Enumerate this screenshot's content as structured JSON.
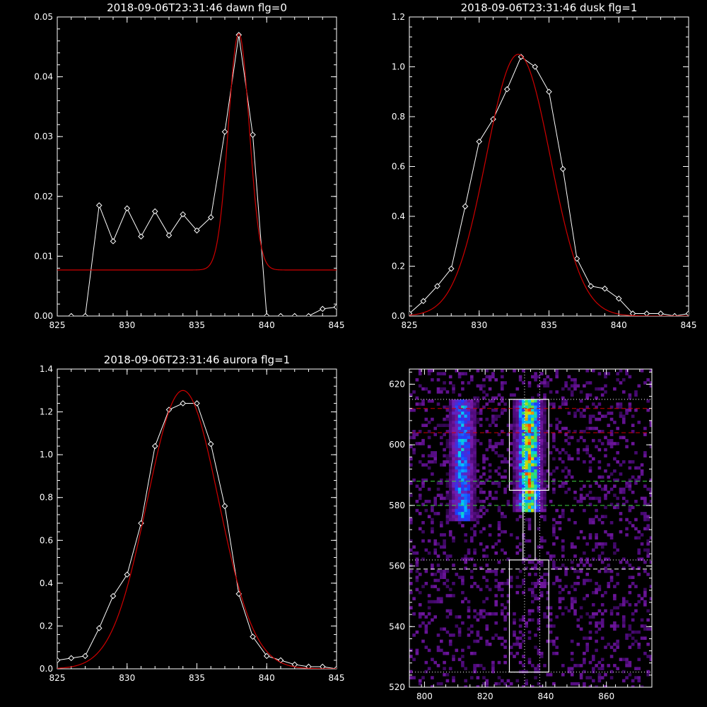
{
  "chart_data": [
    {
      "type": "line",
      "title": "2018-09-06T23:31:46 dawn flg=0",
      "xlim": [
        825,
        845
      ],
      "ylim": [
        0,
        0.05
      ],
      "xticks": [
        "825",
        "830",
        "835",
        "840",
        "845"
      ],
      "yticks": [
        "0.00",
        "0.01",
        "0.02",
        "0.03",
        "0.04",
        "0.05"
      ],
      "series": [
        {
          "color": "#ffffff",
          "marker": "diamond",
          "x": [
            826,
            827,
            828,
            829,
            830,
            831,
            832,
            833,
            834,
            835,
            836,
            837,
            838,
            839,
            840,
            841,
            842,
            843,
            844,
            845
          ],
          "y": [
            0.0,
            0.0,
            0.0185,
            0.0125,
            0.018,
            0.0133,
            0.0175,
            0.0135,
            0.017,
            0.0143,
            0.0165,
            0.0308,
            0.047,
            0.0303,
            0.0,
            0.0,
            0.0,
            0.0,
            0.0012,
            0.0015
          ]
        },
        {
          "color": "#d00000",
          "curve": "gaussian",
          "center": 838.0,
          "sigma": 0.75,
          "amplitude": 0.0395,
          "baseline": 0.0077
        }
      ]
    },
    {
      "type": "line",
      "title": "2018-09-06T23:31:46 dusk flg=1",
      "xlim": [
        825,
        845
      ],
      "ylim": [
        0,
        1.2
      ],
      "xticks": [
        "825",
        "830",
        "835",
        "840",
        "845"
      ],
      "yticks": [
        "0.0",
        "0.2",
        "0.4",
        "0.6",
        "0.8",
        "1.0",
        "1.2"
      ],
      "series": [
        {
          "color": "#ffffff",
          "marker": "diamond",
          "x": [
            825,
            826,
            827,
            828,
            829,
            830,
            831,
            832,
            833,
            834,
            835,
            836,
            837,
            838,
            839,
            840,
            841,
            842,
            843,
            844,
            845
          ],
          "y": [
            0.01,
            0.06,
            0.12,
            0.19,
            0.44,
            0.7,
            0.79,
            0.91,
            1.04,
            1.0,
            0.9,
            0.59,
            0.23,
            0.12,
            0.11,
            0.07,
            0.01,
            0.01,
            0.01,
            0.0,
            0.01
          ]
        },
        {
          "color": "#d00000",
          "curve": "gaussian",
          "center": 832.8,
          "sigma": 2.3,
          "amplitude": 1.05,
          "baseline": 0.0
        }
      ]
    },
    {
      "type": "line",
      "title": "2018-09-06T23:31:46 aurora flg=1",
      "xlim": [
        825,
        845
      ],
      "ylim": [
        0,
        1.4
      ],
      "xticks": [
        "825",
        "830",
        "835",
        "840",
        "845"
      ],
      "yticks": [
        "0.0",
        "0.2",
        "0.4",
        "0.6",
        "0.8",
        "1.0",
        "1.2",
        "1.4"
      ],
      "series": [
        {
          "color": "#ffffff",
          "marker": "diamond",
          "x": [
            825,
            826,
            827,
            828,
            829,
            830,
            831,
            832,
            833,
            834,
            835,
            836,
            837,
            838,
            839,
            840,
            841,
            842,
            843,
            844,
            845
          ],
          "y": [
            0.04,
            0.05,
            0.06,
            0.19,
            0.34,
            0.44,
            0.68,
            1.04,
            1.21,
            1.24,
            1.24,
            1.05,
            0.76,
            0.35,
            0.15,
            0.06,
            0.04,
            0.02,
            0.01,
            0.01,
            0.0
          ]
        },
        {
          "color": "#d00000",
          "curve": "gaussian",
          "center": 834.0,
          "sigma": 2.55,
          "amplitude": 1.3,
          "baseline": 0.0
        }
      ]
    },
    {
      "type": "heatmap",
      "title": "",
      "xlim": [
        795,
        875
      ],
      "ylim": [
        520,
        625
      ],
      "xticks": [
        "800",
        "820",
        "840",
        "860"
      ],
      "yticks": [
        "520",
        "540",
        "560",
        "580",
        "600",
        "620"
      ],
      "colormap": [
        "#000000",
        "#4b0a78",
        "#7a1aa8",
        "#1e3cff",
        "#00c8ff",
        "#30e060",
        "#d8e000",
        "#ff3000"
      ],
      "bands": [
        {
          "x": 812,
          "ymin": 575,
          "ymax": 615,
          "strength": 0.55
        },
        {
          "x": 834,
          "ymin": 578,
          "ymax": 615,
          "strength": 0.9
        }
      ],
      "boxes": [
        {
          "x0": 828,
          "x1": 841,
          "y0": 585,
          "y1": 615
        },
        {
          "x0": 828,
          "x1": 841,
          "y0": 525,
          "y1": 562
        },
        {
          "x0": 832.5,
          "x1": 836.5,
          "y0": 562,
          "y1": 585
        }
      ],
      "hlines": [
        {
          "y": 615,
          "color": "#ffffff",
          "style": "dotted"
        },
        {
          "y": 612,
          "color": "#d00000",
          "style": "dashed"
        },
        {
          "y": 604,
          "color": "#d00000",
          "style": "dashed"
        },
        {
          "y": 588,
          "color": "#40d040",
          "style": "dashed"
        },
        {
          "y": 580,
          "color": "#40d040",
          "style": "dashed"
        },
        {
          "y": 562,
          "color": "#ffffff",
          "style": "dotted"
        },
        {
          "y": 559,
          "color": "#ffffff",
          "style": "dashed"
        },
        {
          "y": 525,
          "color": "#ffffff",
          "style": "dotted"
        }
      ],
      "vlines": [
        {
          "x": 833,
          "color": "#ffffff",
          "style": "dotted"
        },
        {
          "x": 838,
          "color": "#ffffff",
          "style": "dotted"
        }
      ]
    }
  ]
}
